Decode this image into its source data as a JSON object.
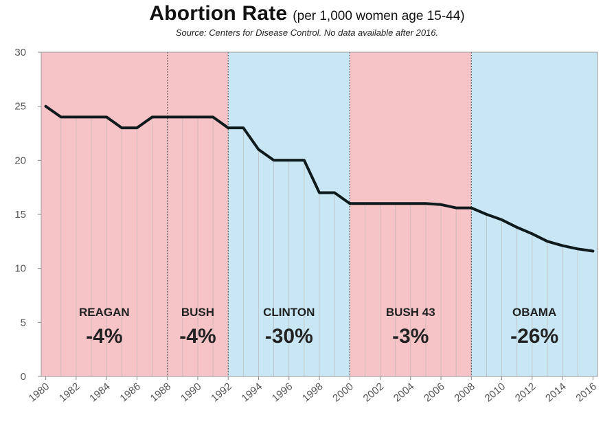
{
  "title": "Abortion Rate",
  "subtitle": "(per 1,000 women age 15-44)",
  "source": "Source:  Centers  for  Disease  Control.  No  data  available  after  2016.",
  "colors": {
    "republican": "#f6c3c6",
    "democrat": "#c8e6f3",
    "line": "#0f1a1c",
    "divider": "#333333",
    "tick_text": "#555555",
    "annotation_text": "#222222"
  },
  "chart_data": {
    "type": "line",
    "title": "Abortion Rate",
    "subtitle": "(per 1,000 women age 15-44)",
    "xlabel": "",
    "ylabel": "",
    "xlim": [
      1979.7,
      2016.3
    ],
    "ylim": [
      0,
      30
    ],
    "yticks": [
      0,
      5,
      10,
      15,
      20,
      25,
      30
    ],
    "xticks": [
      1980,
      1982,
      1984,
      1986,
      1988,
      1990,
      1992,
      1994,
      1996,
      1998,
      2000,
      2002,
      2004,
      2006,
      2008,
      2010,
      2012,
      2014,
      2016
    ],
    "xtick_labels": [
      "1980",
      "1982",
      "1984",
      "1986",
      "1988",
      "1990",
      "1992",
      "1994",
      "1996",
      "1998",
      "2000",
      "2002",
      "2004",
      "2006",
      "2008",
      "2010",
      "2012",
      "2014",
      "2016"
    ],
    "series": [
      {
        "name": "Abortion Rate",
        "x": [
          1980,
          1981,
          1982,
          1983,
          1984,
          1985,
          1986,
          1987,
          1988,
          1989,
          1990,
          1991,
          1992,
          1993,
          1994,
          1995,
          1996,
          1997,
          1998,
          1999,
          2000,
          2001,
          2002,
          2003,
          2004,
          2005,
          2006,
          2007,
          2008,
          2009,
          2010,
          2011,
          2012,
          2013,
          2014,
          2015,
          2016
        ],
        "y": [
          25,
          24,
          24,
          24,
          24,
          23,
          23,
          24,
          24,
          24,
          24,
          24,
          23,
          23,
          21,
          20,
          20,
          20,
          17,
          17,
          16,
          16,
          16,
          16,
          16,
          16,
          15.9,
          15.6,
          15.6,
          15,
          14.5,
          13.8,
          13.2,
          12.5,
          12.1,
          11.8,
          11.6
        ]
      }
    ],
    "periods": [
      {
        "president": "REAGAN",
        "change": "-4%",
        "start": 1979.7,
        "end": 1988,
        "party": "republican"
      },
      {
        "president": "BUSH",
        "change": "-4%",
        "start": 1988,
        "end": 1992,
        "party": "republican"
      },
      {
        "president": "CLINTON",
        "change": "-30%",
        "start": 1992,
        "end": 2000,
        "party": "democrat"
      },
      {
        "president": "BUSH 43",
        "change": "-3%",
        "start": 2000,
        "end": 2008,
        "party": "republican"
      },
      {
        "president": "OBAMA",
        "change": "-26%",
        "start": 2008,
        "end": 2016.3,
        "party": "democrat"
      }
    ],
    "label_y": 5.6,
    "change_y": 3.1,
    "grid": true,
    "legend": "none"
  }
}
